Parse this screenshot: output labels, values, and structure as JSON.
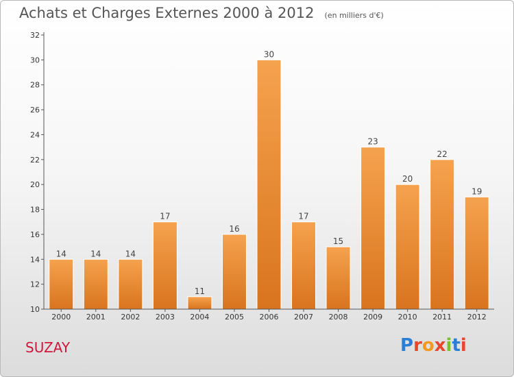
{
  "header": {
    "title": "Achats et Charges Externes 2000 à 2012",
    "unit": "(en milliers d'€)"
  },
  "commune": "SUZAY",
  "logo": {
    "text": "Proxiti",
    "letter_colors": [
      "#2a7fd4",
      "#e8462c",
      "#f39a1e",
      "#e8462c",
      "#7bbf2a",
      "#2a7fd4",
      "#e8462c"
    ]
  },
  "colors": {
    "bar_top": "#f5a24e",
    "bar_bottom": "#d9741e",
    "commune": "#d1163b"
  },
  "chart_data": {
    "type": "bar",
    "title": "Achats et Charges Externes 2000 à 2012",
    "subtitle": "(en milliers d'€)",
    "categories": [
      "2000",
      "2001",
      "2002",
      "2003",
      "2004",
      "2005",
      "2006",
      "2007",
      "2008",
      "2009",
      "2010",
      "2011",
      "2012"
    ],
    "values": [
      14,
      14,
      14,
      17,
      11,
      16,
      30,
      17,
      15,
      23,
      20,
      22,
      19
    ],
    "ylim": [
      10,
      32
    ],
    "yticks": [
      10,
      12,
      14,
      16,
      18,
      20,
      22,
      24,
      26,
      28,
      30,
      32
    ],
    "grid": false,
    "data_labels": true
  }
}
